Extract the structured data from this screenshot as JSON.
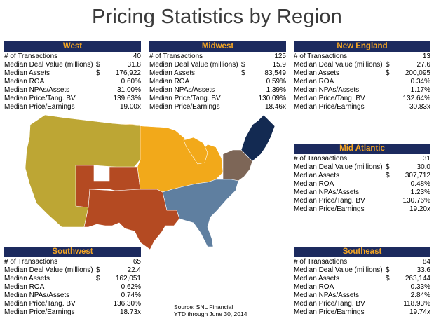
{
  "title": "Pricing Statistics by Region",
  "colors": {
    "header_bg": "#1c2a5e",
    "header_text": "#f5a623",
    "west": "#bda634",
    "midwest": "#f2a91a",
    "new_england": "#132a52",
    "mid_atlantic": "#7d6657",
    "southwest": "#b44a22",
    "southeast": "#5f7fa0"
  },
  "labels": {
    "transactions": "# of Transactions",
    "deal_value": "Median Deal Value (millions)",
    "assets": "Median Assets",
    "roa": "Median ROA",
    "npas": "Median NPAs/Assets",
    "price_tbv": "Median Price/Tang. BV",
    "price_earnings": "Median Price/Earnings"
  },
  "currency": "$",
  "regions": {
    "west": {
      "name": "West",
      "transactions": "40",
      "deal_value": "31.8",
      "assets": "176,922",
      "roa": "0.60%",
      "npas": "31.00%",
      "price_tbv": "139.63%",
      "price_earnings": "19.00x"
    },
    "midwest": {
      "name": "Midwest",
      "transactions": "125",
      "deal_value": "15.9",
      "assets": "83,549",
      "roa": "0.59%",
      "npas": "1.39%",
      "price_tbv": "130.09%",
      "price_earnings": "18.46x"
    },
    "new_england": {
      "name": "New England",
      "transactions": "13",
      "deal_value": "27.6",
      "assets": "200,095",
      "roa": "0.34%",
      "npas": "1.17%",
      "price_tbv": "132.64%",
      "price_earnings": "30.83x"
    },
    "mid_atlantic": {
      "name": "Mid Atlantic",
      "transactions": "31",
      "deal_value": "30.0",
      "assets": "307,712",
      "roa": "0.48%",
      "npas": "1.23%",
      "price_tbv": "130.76%",
      "price_earnings": "19.20x"
    },
    "southwest": {
      "name": "Southwest",
      "transactions": "65",
      "deal_value": "22.4",
      "assets": "162,051",
      "roa": "0.62%",
      "npas": "0.74%",
      "price_tbv": "136.30%",
      "price_earnings": "18.73x"
    },
    "southeast": {
      "name": "Southeast",
      "transactions": "84",
      "deal_value": "33.6",
      "assets": "263,144",
      "roa": "0.33%",
      "npas": "2.84%",
      "price_tbv": "118.93%",
      "price_earnings": "19.74x"
    }
  },
  "source": {
    "line1": "Source: SNL Financial",
    "line2": "YTD through June 30, 2014"
  }
}
